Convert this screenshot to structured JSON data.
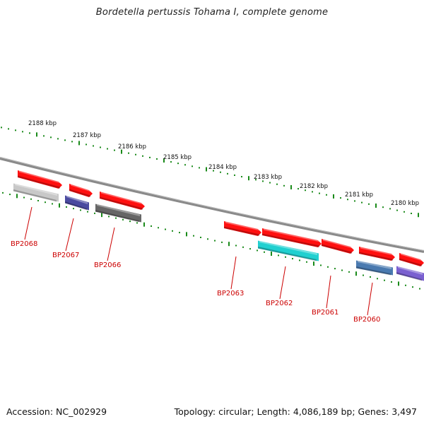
{
  "title": "Bordetella pertussis Tohama I, complete genome",
  "footer": {
    "accession": "Accession: NC_002929",
    "summary": "Topology: circular; Length: 4,086,189 bp; Genes: 3,497"
  },
  "colors": {
    "backbone": "#8a8a8a",
    "tick": "#1a8a1a",
    "forward_gene": "#ff1010",
    "label": "#cc0000"
  },
  "scale_labels": [
    "2188 kbp",
    "2187 kbp",
    "2186 kbp",
    "2185 kbp",
    "2184 kbp",
    "2183 kbp",
    "2182 kbp",
    "2181 kbp",
    "2180 kbp"
  ],
  "genes": [
    {
      "id": "BP2068",
      "color": "#c8c8c8"
    },
    {
      "id": "BP2067",
      "color": "#4a4aa0"
    },
    {
      "id": "BP2066",
      "color": "#666666"
    },
    {
      "id": "BP2063",
      "color": "#ff1010"
    },
    {
      "id": "BP2062",
      "color": "#20d0d0"
    },
    {
      "id": "BP2061",
      "color": "#ff1010"
    },
    {
      "id": "BP2060",
      "color": "#4a7ab0"
    }
  ],
  "forward_features": 7,
  "reverse_extra": {
    "color": "#7a60d0"
  }
}
